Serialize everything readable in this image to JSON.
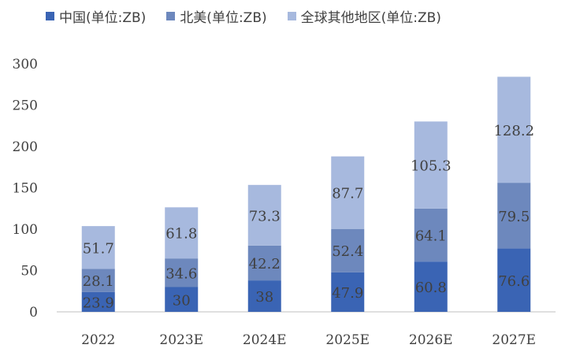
{
  "chart_data": {
    "type": "bar",
    "stacked": true,
    "categories": [
      "2022",
      "2023E",
      "2024E",
      "2025E",
      "2026E",
      "2027E"
    ],
    "series": [
      {
        "name": "中国(单位:ZB)",
        "color": "#3a64b4",
        "values": [
          23.9,
          30,
          38,
          47.9,
          60.8,
          76.6
        ]
      },
      {
        "name": "北美(单位:ZB)",
        "color": "#6d88bd",
        "values": [
          28.1,
          34.6,
          42.2,
          52.4,
          64.1,
          79.5
        ]
      },
      {
        "name": "全球其他地区(单位:ZB)",
        "color": "#a7b9de",
        "values": [
          51.7,
          61.8,
          73.3,
          87.7,
          105.3,
          128.2
        ]
      }
    ],
    "data_labels": [
      [
        "23.9",
        "30",
        "38",
        "47.9",
        "60.8",
        "76.6"
      ],
      [
        "28.1",
        "34.6",
        "42.2",
        "52.4",
        "64.1",
        "79.5"
      ],
      [
        "51.7",
        "61.8",
        "73.3",
        "87.7",
        "105.3",
        "128.2"
      ]
    ],
    "yticks": [
      "0",
      "50",
      "100",
      "150",
      "200",
      "250",
      "300"
    ],
    "ylim": [
      0,
      300
    ],
    "legend_position": "top",
    "grid": false
  }
}
